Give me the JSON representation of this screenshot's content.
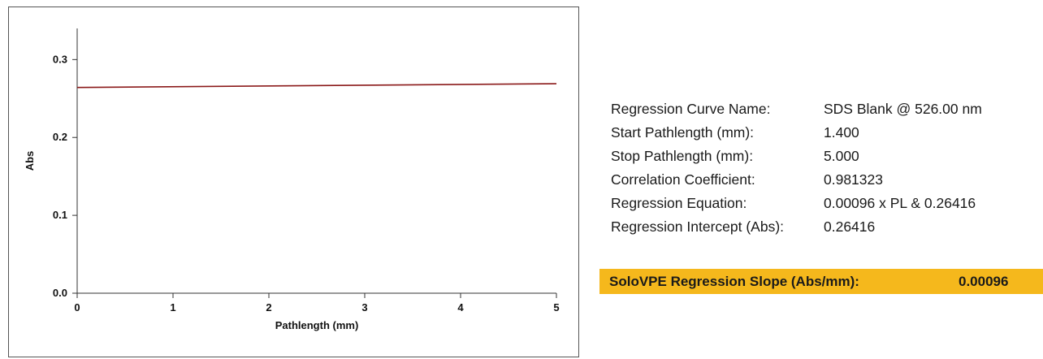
{
  "chart_data": {
    "type": "line",
    "xlabel": "Pathlength (mm)",
    "ylabel": "Abs",
    "xlim": [
      0,
      5
    ],
    "ylim": [
      0,
      0.34
    ],
    "x_ticks": [
      "0",
      "1",
      "2",
      "3",
      "4",
      "5"
    ],
    "y_ticks": [
      "0.0",
      "0.1",
      "0.2",
      "0.3"
    ],
    "grid": false,
    "series": [
      {
        "x": [
          0,
          5
        ],
        "y": [
          0.2642,
          0.269
        ],
        "color": "#8b1a1a"
      }
    ]
  },
  "stats": [
    {
      "label": "Regression Curve Name:",
      "value": "SDS Blank @ 526.00 nm"
    },
    {
      "label": "Start Pathlength (mm):",
      "value": "1.400"
    },
    {
      "label": "Stop Pathlength (mm):",
      "value": "5.000"
    },
    {
      "label": "Correlation Coefficient:",
      "value": "0.981323"
    },
    {
      "label": "Regression Equation:",
      "value": "0.00096 x PL & 0.26416"
    },
    {
      "label": "Regression Intercept (Abs):",
      "value": "0.26416"
    }
  ],
  "slope": {
    "label": "SoloVPE Regression Slope (Abs/mm):",
    "value": "0.00096",
    "color": "#f5b81c"
  }
}
